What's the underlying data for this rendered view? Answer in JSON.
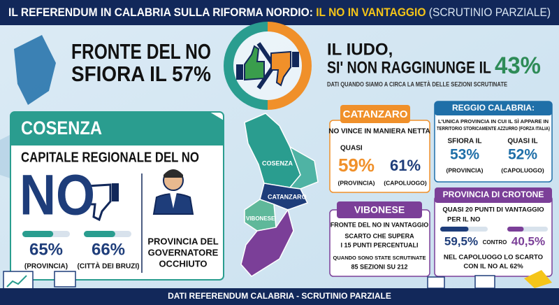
{
  "header": {
    "title_part1": "IL REFERENDUM IN CALABRIA SULLA RIFORMA NORDIO:",
    "title_highlight": "IL NO IN VANTAGGIO",
    "title_part2": "(SCRUTINIO PARZIALE)"
  },
  "headline": {
    "no_line1": "FRONTE DEL NO",
    "no_line2": "SFIORA IL 57%",
    "si_line1": "IL IUDO,",
    "si_line2": "SI' NON RAGGINUNGE IL",
    "si_value": "43%",
    "note": "DATI QUANDO SIAMO A CIRCA LA METÀ DELLE SEZIONI SCRUTINATE"
  },
  "cosenza": {
    "title": "COSENZA",
    "subtitle": "CAPITALE REGIONALE DEL NO",
    "big": "NO",
    "governor": [
      "PROVINCIA DEL",
      "GOVERNATORE",
      "OCCHIUTO"
    ],
    "stats": [
      {
        "value": 65,
        "label": "65%",
        "caption": "(PROVINCIA)"
      },
      {
        "value": 66,
        "label": "66%",
        "caption": "(CITTÀ DEI BRUZI)"
      }
    ]
  },
  "map": {
    "labels": [
      "COSENZA",
      "CATANZARO",
      "VIBONESE"
    ]
  },
  "catanzaro": {
    "title": "CATANZARO",
    "subtitle": "NO VINCE IN MANIERA NETTA",
    "prefix": "QUASI",
    "stats": [
      {
        "label": "59%",
        "caption": "(PROVINCIA)"
      },
      {
        "label": "61%",
        "caption": "(CAPOLUOGO)"
      }
    ]
  },
  "reggio": {
    "title": "REGGIO CALABRIA:",
    "lines": [
      "L'UNICA PROVINCIA IN CUI IL SÌ APPARE IN",
      "TERRITORIO STORICAMENTE AZZURRO (FORZA ITALIA)"
    ],
    "stats": [
      {
        "prefix": "SFIORA IL",
        "label": "53%",
        "caption": "(PROVINCIA)"
      },
      {
        "prefix": "QUASI IL",
        "label": "52%",
        "caption": "(CAPOLUOGO)"
      }
    ]
  },
  "vibonese": {
    "title": "VIBONESE",
    "lines": [
      "FRONTE DEL NO IN VANTAGGIO",
      "SCARTO CHE SUPERA",
      "I 15 PUNTI PERCENTUALI"
    ],
    "note": [
      "QUANDO SONO STATE SCRUTINATE",
      "85 SEZIONI SU 212"
    ]
  },
  "crotone": {
    "title": "PROVINCIA DI CROTONE",
    "lines": [
      "QUASI 20 PUNTI DI VANTAGGIO",
      "PER IL NO"
    ],
    "stats": [
      {
        "value": 59.5,
        "label": "59,5%"
      },
      {
        "value": 40.5,
        "label": "40,5%"
      }
    ],
    "versus": "CONTRO",
    "note": [
      "NEL CAPOLUOGO LO SCARTO",
      "CON IL NO AL 62%"
    ]
  },
  "footer": "DATI REFERENDUM CALABRIA - SCRUTINIO PARZIALE"
}
